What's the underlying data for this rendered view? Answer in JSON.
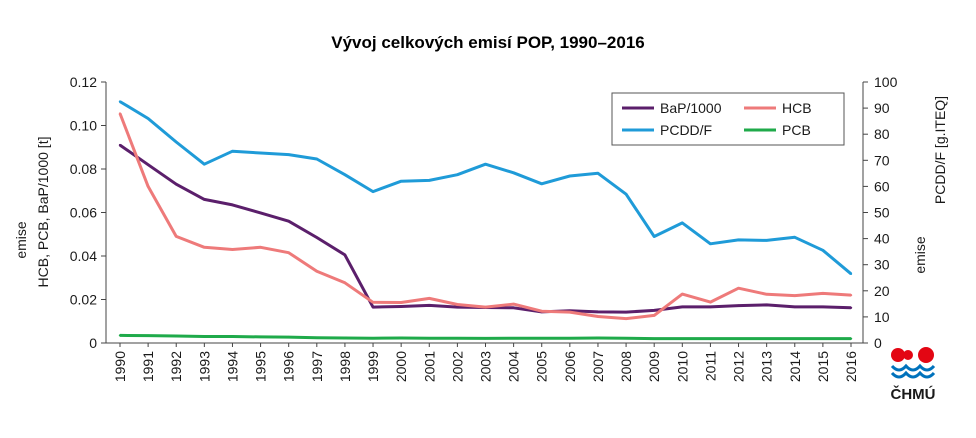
{
  "chart_data": {
    "type": "line",
    "title": "Vývoj celkových emisí POP, 1990–2016",
    "xlabel": "",
    "ylabel_left_lines": [
      "emise",
      "HCB, PCB, BaP/1000 [t]"
    ],
    "ylabel_right_lines": [
      "emise",
      "PCDD/F [g.ITEQ]"
    ],
    "x": [
      1990,
      1991,
      1992,
      1993,
      1994,
      1995,
      1996,
      1997,
      1998,
      1999,
      2000,
      2001,
      2002,
      2003,
      2004,
      2005,
      2006,
      2007,
      2008,
      2009,
      2010,
      2011,
      2012,
      2013,
      2014,
      2015,
      2016
    ],
    "x_tick_labels": [
      "1990",
      "1991",
      "1992",
      "1993",
      "1994",
      "1995",
      "1996",
      "1997",
      "1998",
      "1999",
      "2000",
      "2001",
      "2002",
      "2003",
      "2004",
      "2005",
      "2006",
      "2007",
      "2008",
      "2009",
      "2010",
      "2011",
      "2012",
      "2013",
      "2014",
      "2015",
      "2016"
    ],
    "ylim_left": [
      0,
      0.12
    ],
    "ylim_right": [
      0,
      100
    ],
    "yticks_left": [
      0,
      0.02,
      0.04,
      0.06,
      0.08,
      0.1,
      0.12
    ],
    "ytick_labels_left": [
      "0",
      "0.02",
      "0.04",
      "0.06",
      "0.08",
      "0.10",
      "0.12"
    ],
    "yticks_right": [
      0,
      10,
      20,
      30,
      40,
      50,
      60,
      70,
      80,
      90,
      100
    ],
    "ytick_labels_right": [
      "0",
      "10",
      "20",
      "30",
      "40",
      "50",
      "60",
      "70",
      "80",
      "90",
      "100"
    ],
    "grid": false,
    "legend_placement": "top-right",
    "series": [
      {
        "name": "BaP/1000",
        "axis": "left",
        "color": "#5b1f6b",
        "values": [
          0.091,
          0.082,
          0.073,
          0.066,
          0.0635,
          0.0598,
          0.056,
          0.0485,
          0.0405,
          0.0165,
          0.0168,
          0.0173,
          0.0165,
          0.0163,
          0.0162,
          0.0143,
          0.0148,
          0.0143,
          0.0142,
          0.015,
          0.0166,
          0.0166,
          0.0172,
          0.0175,
          0.0166,
          0.0166,
          0.0162
        ]
      },
      {
        "name": "HCB",
        "axis": "left",
        "color": "#ee7a7a",
        "values": [
          0.1055,
          0.072,
          0.049,
          0.044,
          0.043,
          0.044,
          0.0415,
          0.033,
          0.0277,
          0.0187,
          0.0186,
          0.0205,
          0.0177,
          0.0165,
          0.0179,
          0.0146,
          0.0142,
          0.0122,
          0.0112,
          0.0127,
          0.0225,
          0.0188,
          0.0252,
          0.0224,
          0.0218,
          0.0228,
          0.022
        ]
      },
      {
        "name": "PCDD/F",
        "axis": "right",
        "color": "#1f9bd8",
        "values": [
          92.5,
          86,
          77,
          68.5,
          73.5,
          72.8,
          72.2,
          70.5,
          64.5,
          58,
          62,
          62.3,
          64.5,
          68.5,
          65.2,
          61,
          64,
          65,
          57,
          40.8,
          46,
          38,
          39.5,
          39.3,
          40.5,
          35.5,
          26.5
        ]
      },
      {
        "name": "PCB",
        "axis": "left",
        "color": "#1faa4a",
        "values": [
          0.0035,
          0.0034,
          0.0032,
          0.003,
          0.003,
          0.0028,
          0.0027,
          0.0024,
          0.0023,
          0.0022,
          0.0023,
          0.0022,
          0.0022,
          0.0021,
          0.0022,
          0.0022,
          0.0022,
          0.0023,
          0.0022,
          0.002,
          0.002,
          0.002,
          0.002,
          0.002,
          0.002,
          0.002,
          0.002
        ]
      }
    ]
  },
  "logo": {
    "text": "ČHMÚ",
    "colors": {
      "red": "#e30613",
      "blue": "#0072bc"
    }
  }
}
